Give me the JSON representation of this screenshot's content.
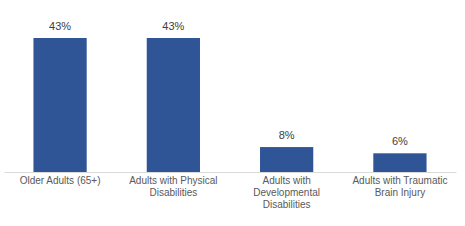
{
  "chart_data": {
    "type": "bar",
    "categories": [
      "Older Adults (65+)",
      "Adults with Physical Disabilities",
      "Adults with Developmental Disabilities",
      "Adults with Traumatic Brain Injury"
    ],
    "values": [
      43,
      43,
      8,
      6
    ],
    "value_labels": [
      "43%",
      "43%",
      "8%",
      "6%"
    ],
    "color": "#2f5597",
    "ylim": [
      0,
      43
    ],
    "data_labels": true,
    "tick_labels": "x"
  }
}
